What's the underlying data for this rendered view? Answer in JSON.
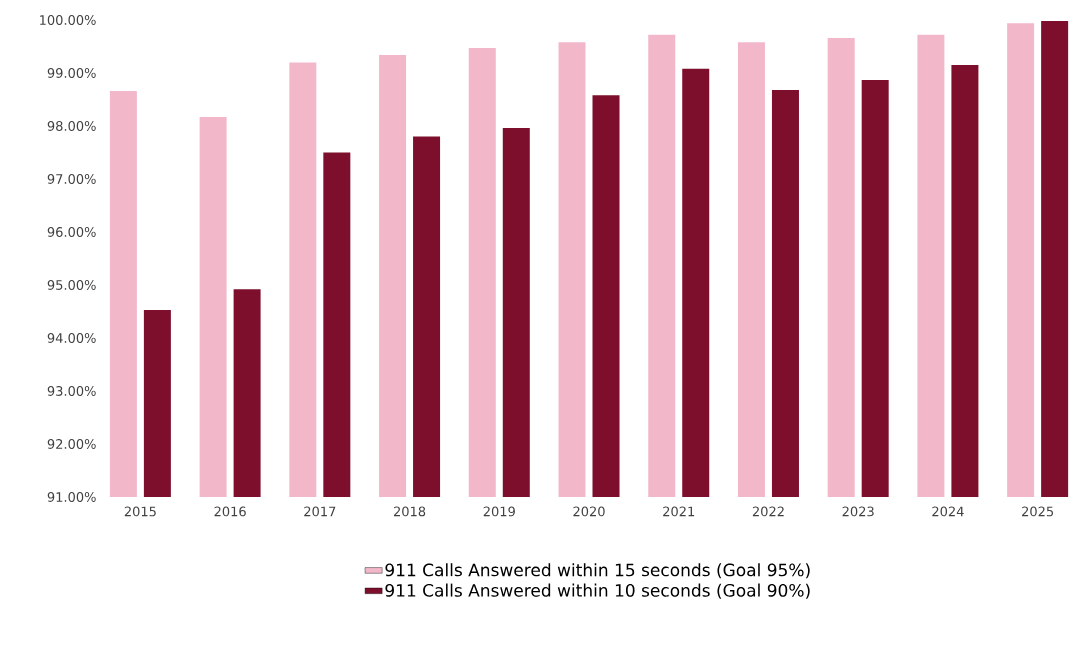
{
  "chart_data": {
    "type": "bar",
    "categories": [
      "2015",
      "2016",
      "2017",
      "2018",
      "2019",
      "2020",
      "2021",
      "2022",
      "2023",
      "2024",
      "2025"
    ],
    "series": [
      {
        "name": "911 Calls Answered within 15 seconds (Goal 95%)",
        "color": "#f2b8c9",
        "values": [
          98.66,
          98.17,
          99.2,
          99.34,
          99.47,
          99.58,
          99.72,
          99.58,
          99.66,
          99.72,
          99.94
        ]
      },
      {
        "name": "911 Calls Answered within 10 seconds (Goal 90%)",
        "color": "#7d0f2d",
        "values": [
          94.53,
          94.92,
          97.5,
          97.8,
          97.96,
          98.58,
          99.08,
          98.68,
          98.87,
          99.15,
          99.98
        ]
      }
    ],
    "ylim": [
      91,
      100
    ],
    "yticks": [
      {
        "value": 91,
        "label": "91.00%"
      },
      {
        "value": 92,
        "label": "92.00%"
      },
      {
        "value": 93,
        "label": "93.00%"
      },
      {
        "value": 94,
        "label": "94.00%"
      },
      {
        "value": 95,
        "label": "95.00%"
      },
      {
        "value": 96,
        "label": "96.00%"
      },
      {
        "value": 97,
        "label": "97.00%"
      },
      {
        "value": 98,
        "label": "98.00%"
      },
      {
        "value": 99,
        "label": "99.00%"
      },
      {
        "value": 100,
        "label": "100.00%"
      }
    ],
    "legend": "bottom",
    "grid": false
  }
}
